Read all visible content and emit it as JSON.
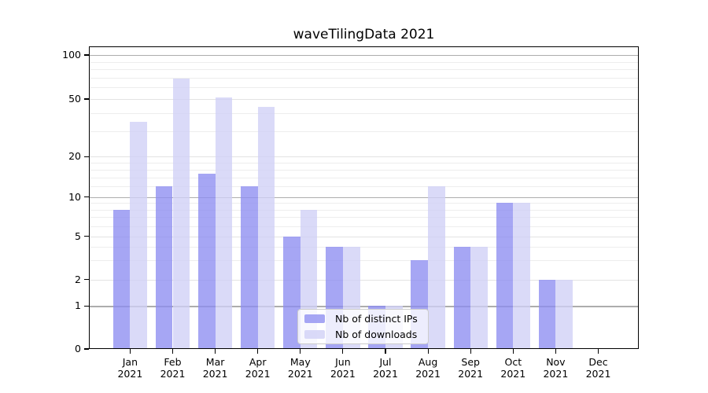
{
  "chart_data": {
    "type": "bar",
    "title": "waveTilingData 2021",
    "categories": [
      "Jan",
      "Feb",
      "Mar",
      "Apr",
      "May",
      "Jun",
      "Jul",
      "Aug",
      "Sep",
      "Oct",
      "Nov",
      "Dec"
    ],
    "category_sub_label": "2021",
    "series": [
      {
        "name": "Nb of distinct IPs",
        "color": "#a6a6f4",
        "values": [
          8,
          12,
          15,
          12,
          5,
          4,
          1,
          3,
          4,
          9,
          2,
          0
        ]
      },
      {
        "name": "Nb of downloads",
        "color": "#d9d9f8",
        "values": [
          35,
          69,
          51,
          44,
          8,
          4,
          1,
          12,
          4,
          9,
          2,
          0
        ]
      }
    ],
    "y_axis": {
      "scale": "symlog",
      "ticks": [
        0,
        1,
        2,
        5,
        10,
        20,
        50,
        100
      ],
      "tick_labels": [
        "0",
        "1",
        "2",
        "5",
        "10",
        "20",
        "50",
        "100"
      ],
      "minor_gridlines": [
        3,
        4,
        6,
        7,
        8,
        9,
        12,
        14,
        16,
        18,
        30,
        40,
        60,
        70,
        80,
        90
      ],
      "ylim": [
        0,
        115
      ]
    },
    "legend": {
      "position": "lower center"
    },
    "grid": true
  }
}
